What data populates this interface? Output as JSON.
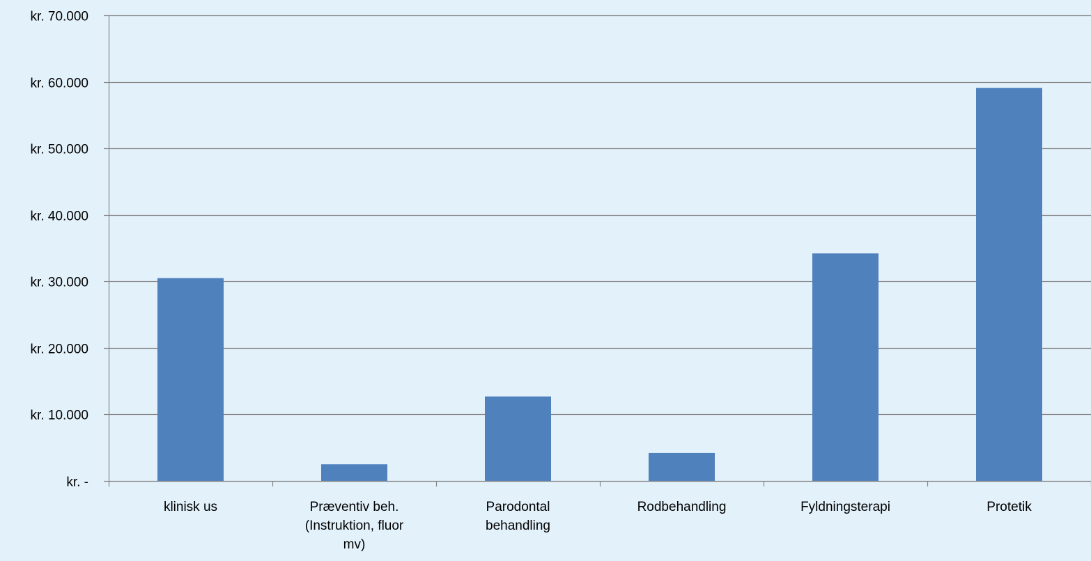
{
  "chart_data": {
    "type": "bar",
    "title": "",
    "xlabel": "",
    "ylabel": "",
    "ylim": [
      0,
      70000
    ],
    "grid": true,
    "legend": "none",
    "y_ticks": [
      {
        "value": 0,
        "label": "kr. -"
      },
      {
        "value": 10000,
        "label": "kr. 10.000"
      },
      {
        "value": 20000,
        "label": "kr. 20.000"
      },
      {
        "value": 30000,
        "label": "kr. 30.000"
      },
      {
        "value": 40000,
        "label": "kr. 40.000"
      },
      {
        "value": 50000,
        "label": "kr. 50.000"
      },
      {
        "value": 60000,
        "label": "kr. 60.000"
      },
      {
        "value": 70000,
        "label": "kr. 70.000"
      }
    ],
    "categories": [
      "klinisk us",
      "Præventiv beh. (Instruktion, fluor mv)",
      "Parodontal behandling",
      "Rodbehandling",
      "Fyldningsterapi",
      "Protetik"
    ],
    "category_lines": [
      [
        "klinisk us"
      ],
      [
        "Præventiv beh.",
        "(Instruktion, fluor",
        "mv)"
      ],
      [
        "Parodontal",
        "behandling"
      ],
      [
        "Rodbehandling"
      ],
      [
        "Fyldningsterapi"
      ],
      [
        "Protetik"
      ]
    ],
    "values": [
      30500,
      2500,
      12700,
      4200,
      34200,
      59100
    ],
    "colors": {
      "bar": "#4f81bd",
      "grid": "#868686",
      "axis": "#868686",
      "background": "#e3f1fb"
    }
  }
}
